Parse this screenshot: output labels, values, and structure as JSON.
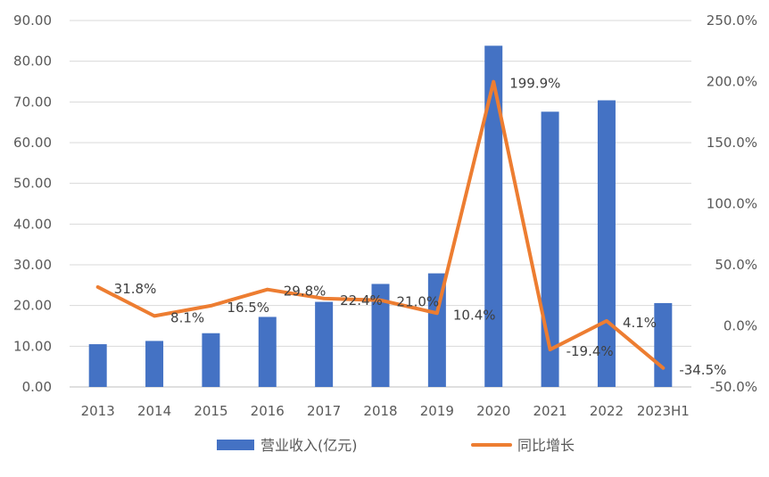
{
  "chart_data": {
    "type": "bar",
    "categories": [
      "2013",
      "2014",
      "2015",
      "2016",
      "2017",
      "2018",
      "2019",
      "2020",
      "2021",
      "2022",
      "2023H1"
    ],
    "series": [
      {
        "name": "营业收入(亿元)",
        "type": "bar",
        "axis": "left",
        "color": "#4472C4",
        "values": [
          10.5,
          11.3,
          13.2,
          17.2,
          20.9,
          25.3,
          27.9,
          83.8,
          67.6,
          70.4,
          20.6
        ]
      },
      {
        "name": "同比增长",
        "type": "line",
        "axis": "right",
        "color": "#ED7D31",
        "values": [
          31.8,
          8.1,
          16.5,
          29.8,
          22.4,
          21.0,
          10.4,
          199.9,
          -19.4,
          4.1,
          -34.5
        ],
        "labels": [
          "31.8%",
          "8.1%",
          "16.5%",
          "29.8%",
          "22.4%",
          "21.0%",
          "10.4%",
          "199.9%",
          "-19.4%",
          "4.1%",
          "-34.5%"
        ]
      }
    ],
    "left_axis": {
      "ylim": [
        0,
        90
      ],
      "ticks": [
        "0.00",
        "10.00",
        "20.00",
        "30.00",
        "40.00",
        "50.00",
        "60.00",
        "70.00",
        "80.00",
        "90.00"
      ]
    },
    "right_axis": {
      "ylim": [
        -50,
        250
      ],
      "ticks": [
        "-50.0%",
        "0.0%",
        "50.0%",
        "100.0%",
        "150.0%",
        "200.0%",
        "250.0%"
      ]
    },
    "grid": true,
    "legend_position": "bottom"
  }
}
